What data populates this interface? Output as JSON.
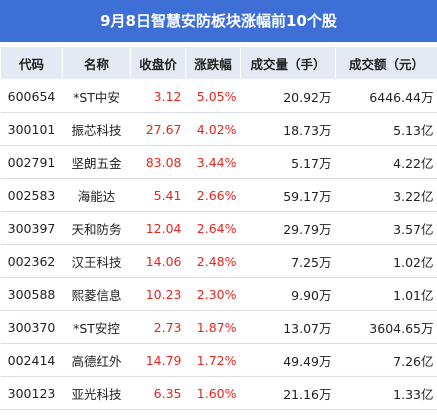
{
  "header": {
    "title": "9月8日智慧安防板块涨幅前10个股"
  },
  "table": {
    "columns": [
      "代码",
      "名称",
      "收盘价",
      "涨跌幅",
      "成交量（手）",
      "成交额（元）"
    ],
    "rows": [
      [
        "600654",
        "*ST中安",
        "3.12",
        "5.05%",
        "20.92万",
        "6446.44万"
      ],
      [
        "300101",
        "振芯科技",
        "27.67",
        "4.02%",
        "18.73万",
        "5.13亿"
      ],
      [
        "002791",
        "坚朗五金",
        "83.08",
        "3.44%",
        "5.17万",
        "4.22亿"
      ],
      [
        "002583",
        "海能达",
        "5.41",
        "2.66%",
        "59.17万",
        "3.22亿"
      ],
      [
        "300397",
        "天和防务",
        "12.04",
        "2.64%",
        "29.79万",
        "3.57亿"
      ],
      [
        "002362",
        "汉王科技",
        "14.06",
        "2.48%",
        "7.25万",
        "1.02亿"
      ],
      [
        "300588",
        "熙菱信息",
        "10.23",
        "2.30%",
        "9.90万",
        "1.01亿"
      ],
      [
        "300370",
        "*ST安控",
        "2.73",
        "1.87%",
        "13.07万",
        "3604.65万"
      ],
      [
        "002414",
        "高德红外",
        "14.79",
        "1.72%",
        "49.49万",
        "7.26亿"
      ],
      [
        "300123",
        "亚光科技",
        "6.35",
        "1.60%",
        "21.16万",
        "1.33亿"
      ]
    ]
  }
}
